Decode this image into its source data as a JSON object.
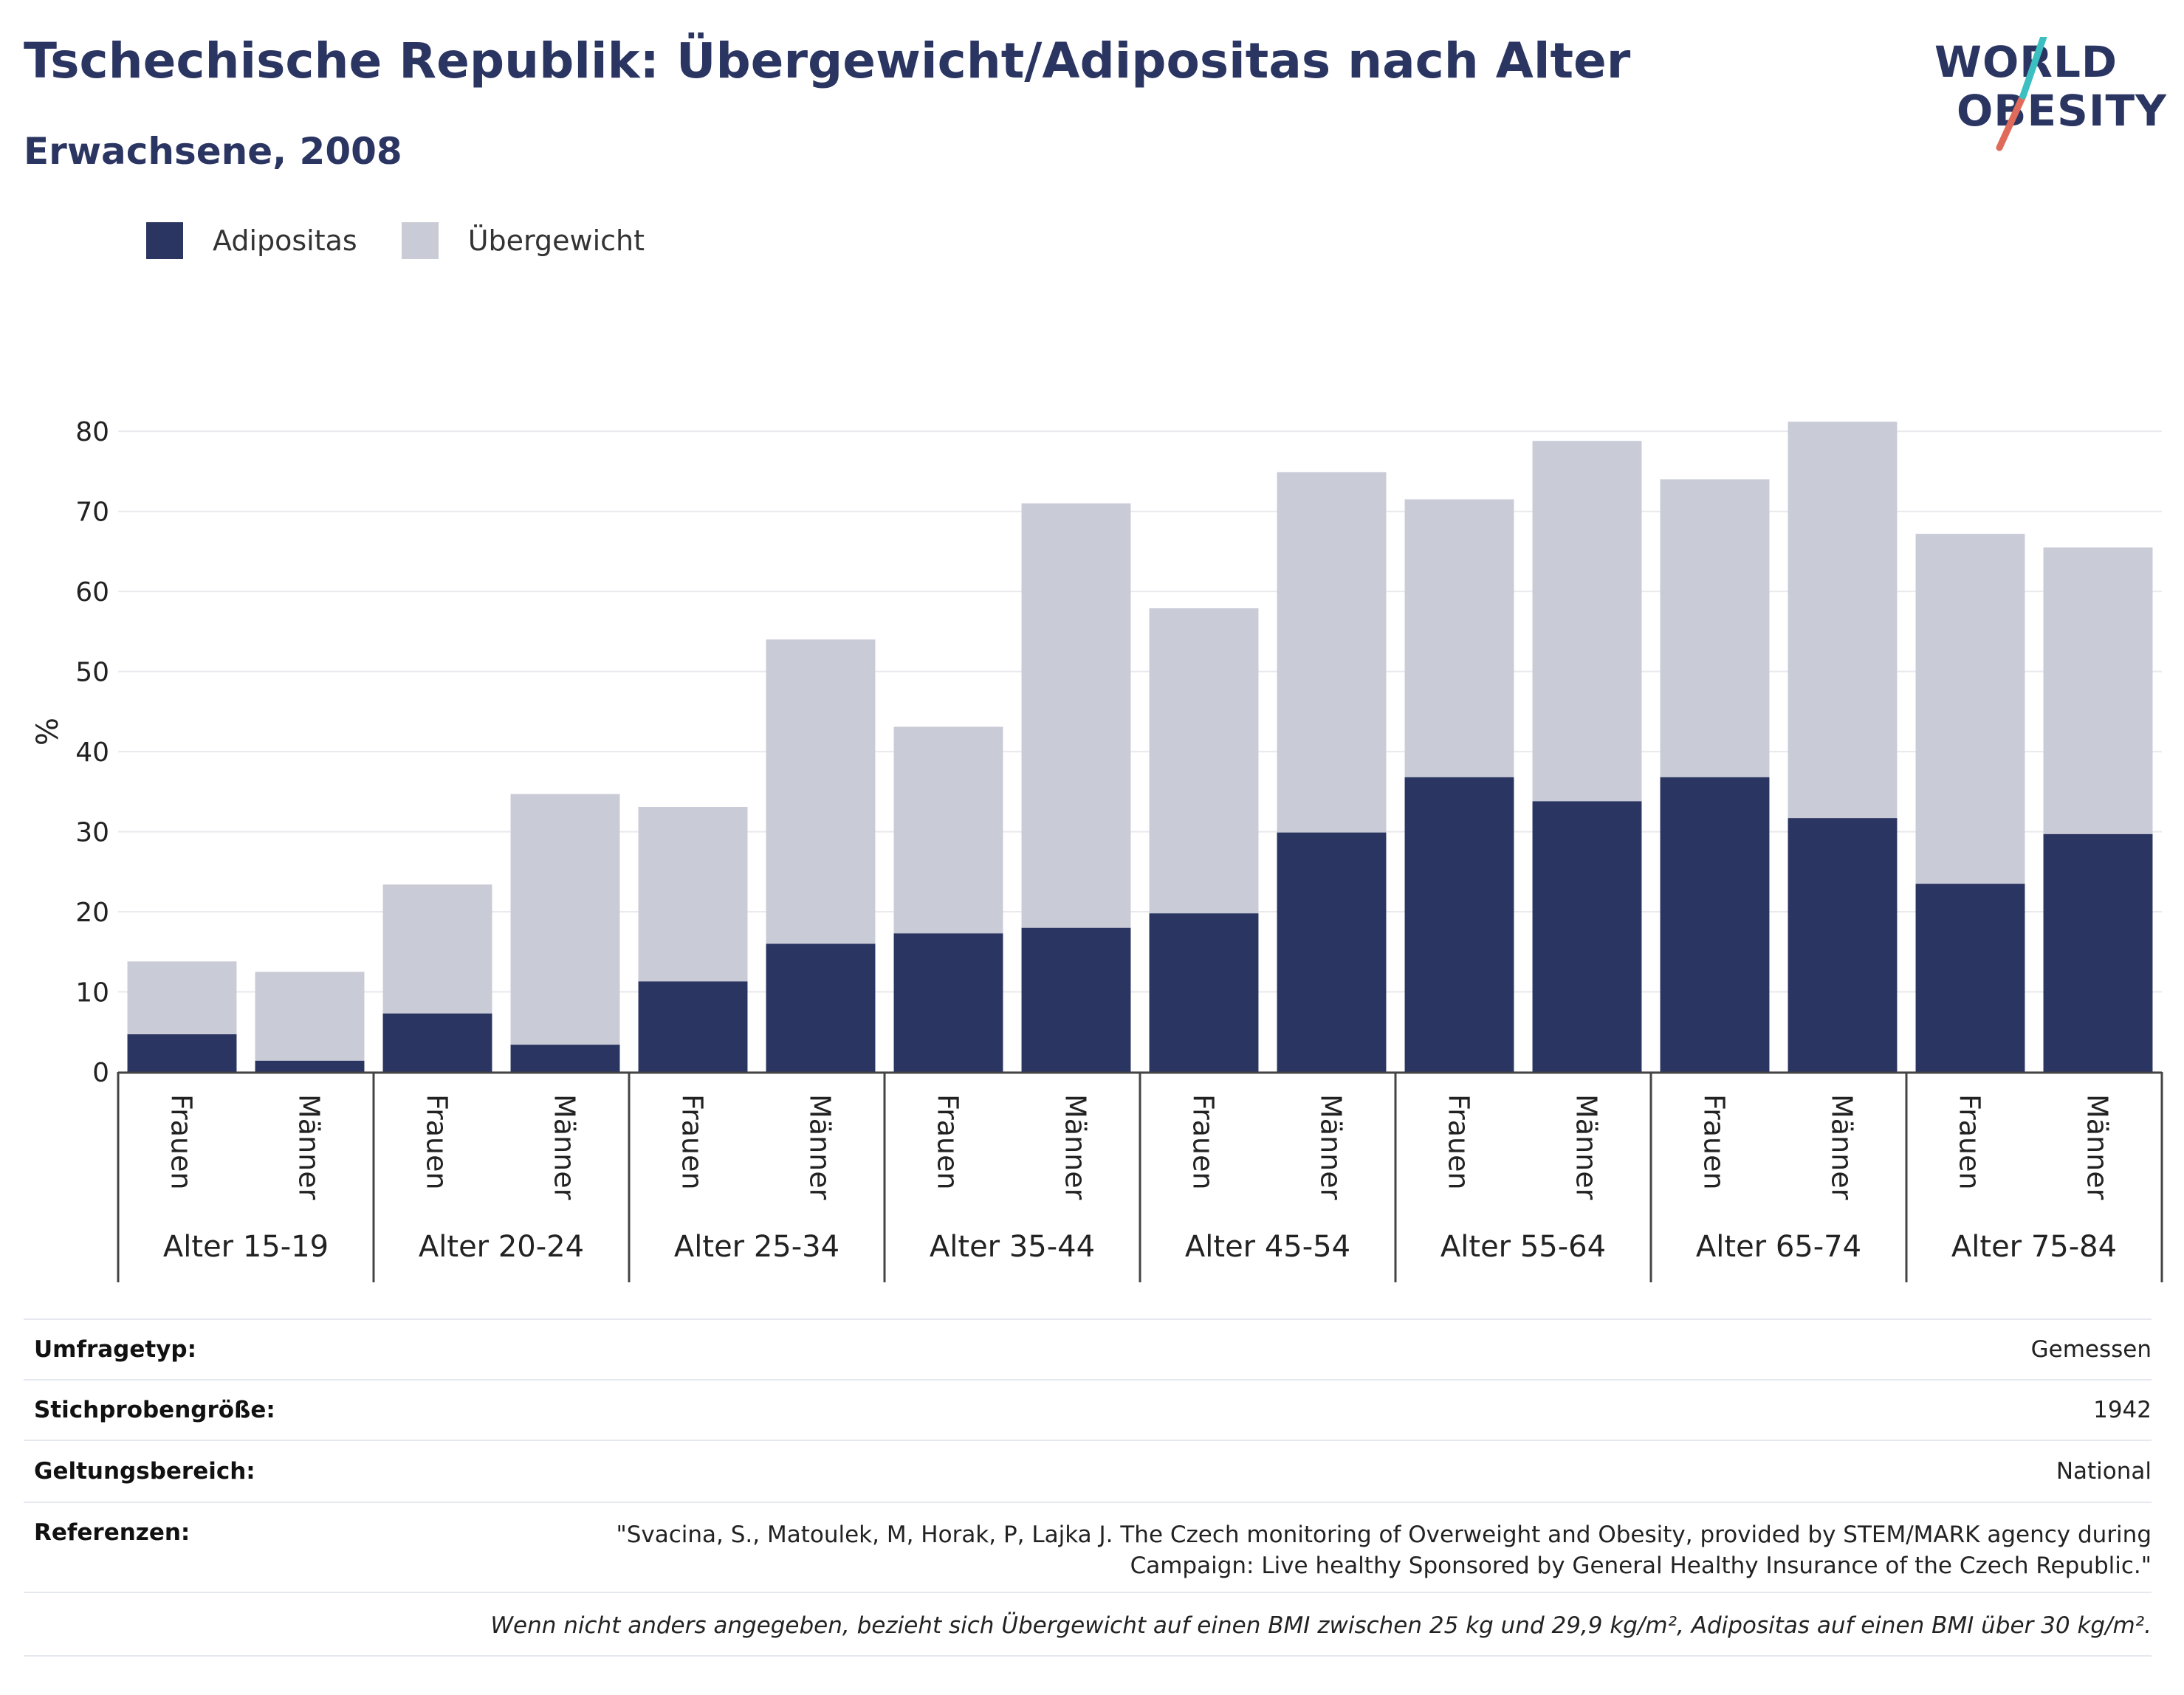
{
  "title": "Tschechische Republik: Übergewicht/Adipositas nach Alter",
  "subtitle": "Erwachsene, 2008",
  "logo": {
    "line1": "WORLD",
    "line2": "OBESITY"
  },
  "colors": {
    "adipositas": "#2a3561",
    "uebergewicht": "#c9cbd7",
    "title": "#2b3562"
  },
  "chart_data": {
    "type": "bar",
    "stacked": true,
    "ylabel": "%",
    "ylim": [
      0,
      85
    ],
    "yticks": [
      0,
      10,
      20,
      30,
      40,
      50,
      60,
      70,
      80
    ],
    "grid": true,
    "legend_position": "top-left",
    "groups": [
      "Alter 15-19",
      "Alter 20-24",
      "Alter 25-34",
      "Alter 35-44",
      "Alter 45-54",
      "Alter 55-64",
      "Alter 65-74",
      "Alter 75-84"
    ],
    "subcategories": [
      "Frauen",
      "Männer"
    ],
    "series": [
      {
        "name": "Adipositas",
        "values": [
          4.7,
          1.4,
          7.3,
          3.4,
          11.3,
          16,
          17.3,
          18,
          19.8,
          29.9,
          36.8,
          33.8,
          36.8,
          31.7,
          23.5,
          29.7
        ]
      },
      {
        "name": "Übergewicht",
        "values": [
          9.1,
          11.1,
          16.1,
          31.3,
          21.8,
          38,
          25.8,
          53,
          38.1,
          45,
          34.7,
          45,
          37.2,
          49.5,
          43.7,
          35.8
        ]
      }
    ],
    "totals": [
      13.8,
      12.5,
      23.4,
      34.7,
      33.1,
      54,
      43.1,
      71,
      57.9,
      74.9,
      71.5,
      78.8,
      74,
      81.2,
      67.2,
      65.5
    ]
  },
  "info": {
    "rows": [
      {
        "key": "Umfragetyp:",
        "value": "Gemessen"
      },
      {
        "key": "Stichprobengröße:",
        "value": "1942"
      },
      {
        "key": "Geltungsbereich:",
        "value": "National"
      },
      {
        "key": "Referenzen:",
        "value_lines": [
          "\"Svacina, S., Matoulek, M, Horak, P, Lajka J. The Czech monitoring of Overweight and Obesity, provided by STEM/MARK agency during",
          "Campaign: Live healthy Sponsored by General Healthy Insurance of the Czech Republic.\""
        ]
      }
    ],
    "note": "Wenn nicht anders angegeben, bezieht sich Übergewicht auf einen BMI zwischen 25 kg und 29,9 kg/m², Adipositas auf einen BMI über 30 kg/m²."
  }
}
